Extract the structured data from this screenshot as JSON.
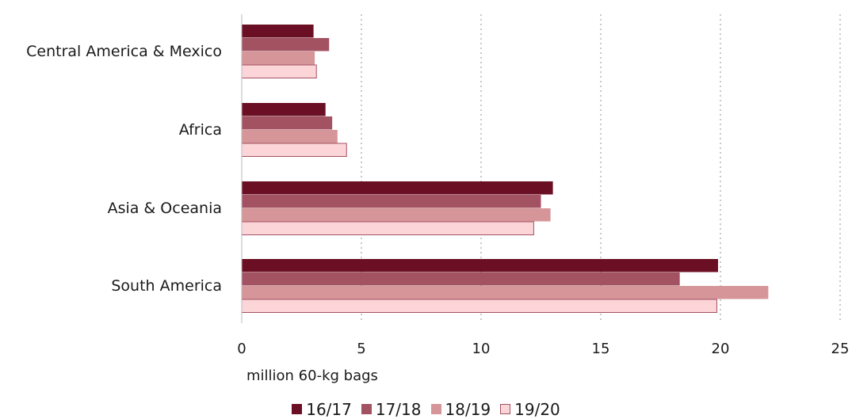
{
  "chart_data": {
    "type": "bar",
    "orientation": "horizontal",
    "categories": [
      "Central America & Mexico",
      "Africa",
      "Asia & Oceania",
      "South America"
    ],
    "series": [
      {
        "name": "16/17",
        "color": "#6b0f24",
        "values": [
          3.0,
          3.5,
          13.0,
          19.9
        ]
      },
      {
        "name": "17/18",
        "color": "#a35262",
        "values": [
          3.65,
          3.78,
          12.5,
          18.3
        ]
      },
      {
        "name": "18/19",
        "color": "#d69598",
        "values": [
          3.05,
          4.0,
          12.9,
          22.0
        ]
      },
      {
        "name": "19/20",
        "color": "#fcd5d8",
        "values": [
          3.12,
          4.38,
          12.2,
          19.85
        ]
      }
    ],
    "xlabel": "million 60-kg bags",
    "xlim": [
      0,
      25
    ],
    "xticks": [
      "0",
      "5",
      "10",
      "15",
      "20",
      "25"
    ],
    "grid": "vertical dotted",
    "legend": "bottom-center"
  }
}
